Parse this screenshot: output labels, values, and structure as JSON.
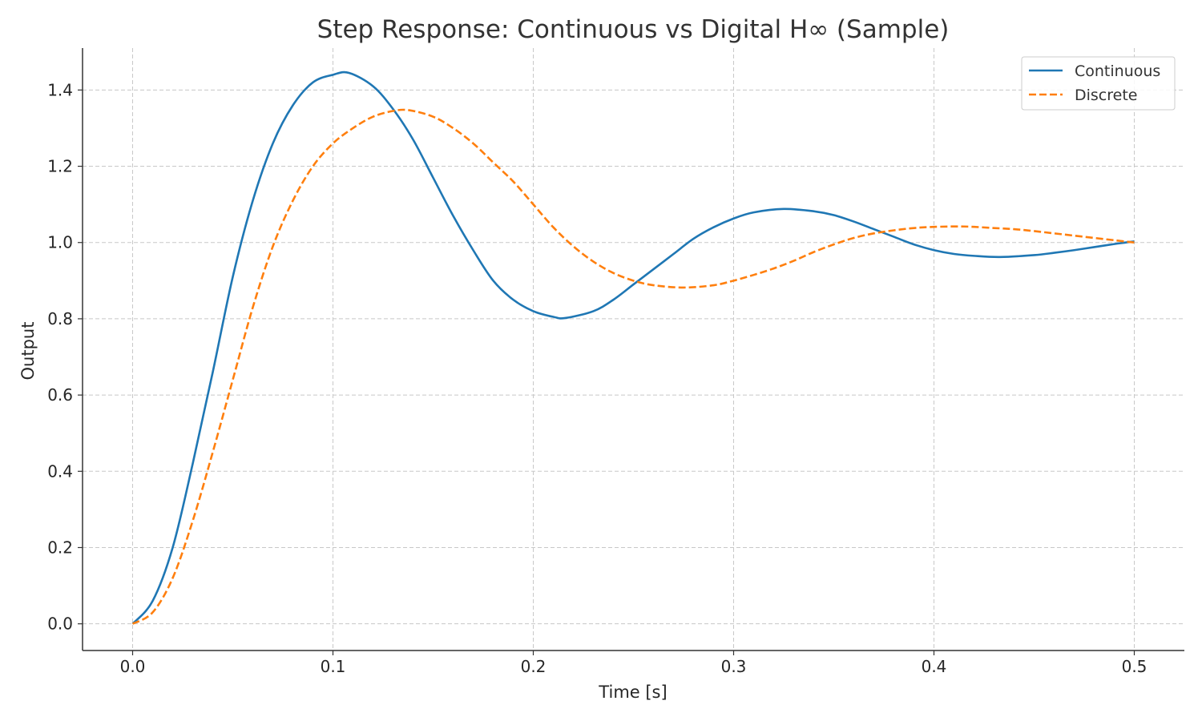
{
  "chart_data": {
    "type": "line",
    "title": "Step Response: Continuous vs Digital H∞ (Sample)",
    "xlabel": "Time [s]",
    "ylabel": "Output",
    "xlim": [
      -0.025,
      0.525
    ],
    "ylim": [
      -0.07,
      1.51
    ],
    "xticks": [
      0.0,
      0.1,
      0.2,
      0.3,
      0.4,
      0.5
    ],
    "xtick_labels": [
      "0.0",
      "0.1",
      "0.2",
      "0.3",
      "0.4",
      "0.5"
    ],
    "yticks": [
      0.0,
      0.2,
      0.4,
      0.6,
      0.8,
      1.0,
      1.2,
      1.4
    ],
    "ytick_labels": [
      "0.0",
      "0.2",
      "0.4",
      "0.6",
      "0.8",
      "1.0",
      "1.2",
      "1.4"
    ],
    "grid": true,
    "legend_position": "top-right",
    "series": [
      {
        "name": "Continuous",
        "color": "#1f77b4",
        "style": "solid",
        "x": [
          0.0,
          0.01,
          0.02,
          0.03,
          0.04,
          0.05,
          0.06,
          0.07,
          0.08,
          0.09,
          0.1,
          0.108,
          0.12,
          0.13,
          0.14,
          0.15,
          0.16,
          0.17,
          0.18,
          0.19,
          0.2,
          0.21,
          0.216,
          0.23,
          0.24,
          0.25,
          0.26,
          0.27,
          0.28,
          0.29,
          0.3,
          0.31,
          0.325,
          0.34,
          0.35,
          0.36,
          0.37,
          0.38,
          0.39,
          0.4,
          0.41,
          0.42,
          0.433,
          0.45,
          0.46,
          0.47,
          0.48,
          0.49,
          0.5
        ],
        "y": [
          0.0,
          0.06,
          0.2,
          0.42,
          0.66,
          0.91,
          1.11,
          1.26,
          1.36,
          1.42,
          1.44,
          1.445,
          1.41,
          1.35,
          1.27,
          1.17,
          1.07,
          0.98,
          0.9,
          0.85,
          0.82,
          0.805,
          0.802,
          0.82,
          0.85,
          0.89,
          0.93,
          0.97,
          1.01,
          1.04,
          1.063,
          1.079,
          1.088,
          1.082,
          1.072,
          1.055,
          1.035,
          1.015,
          0.995,
          0.98,
          0.97,
          0.965,
          0.962,
          0.967,
          0.973,
          0.98,
          0.988,
          0.996,
          1.003
        ]
      },
      {
        "name": "Discrete",
        "color": "#ff7f0e",
        "style": "dashed",
        "x": [
          0.0,
          0.01,
          0.02,
          0.03,
          0.04,
          0.05,
          0.06,
          0.07,
          0.08,
          0.09,
          0.1,
          0.11,
          0.12,
          0.13,
          0.138,
          0.15,
          0.16,
          0.17,
          0.18,
          0.19,
          0.2,
          0.21,
          0.22,
          0.23,
          0.24,
          0.25,
          0.26,
          0.275,
          0.29,
          0.3,
          0.31,
          0.32,
          0.33,
          0.34,
          0.35,
          0.36,
          0.37,
          0.38,
          0.39,
          0.4,
          0.415,
          0.43,
          0.44,
          0.45,
          0.46,
          0.47,
          0.48,
          0.49,
          0.5
        ],
        "y": [
          0.0,
          0.03,
          0.12,
          0.27,
          0.45,
          0.64,
          0.83,
          0.99,
          1.11,
          1.2,
          1.26,
          1.3,
          1.33,
          1.345,
          1.347,
          1.33,
          1.3,
          1.26,
          1.21,
          1.16,
          1.1,
          1.04,
          0.99,
          0.95,
          0.92,
          0.9,
          0.888,
          0.882,
          0.888,
          0.9,
          0.915,
          0.932,
          0.952,
          0.975,
          0.995,
          1.012,
          1.024,
          1.032,
          1.038,
          1.041,
          1.042,
          1.038,
          1.035,
          1.03,
          1.024,
          1.018,
          1.012,
          1.006,
          1.0
        ]
      }
    ]
  }
}
